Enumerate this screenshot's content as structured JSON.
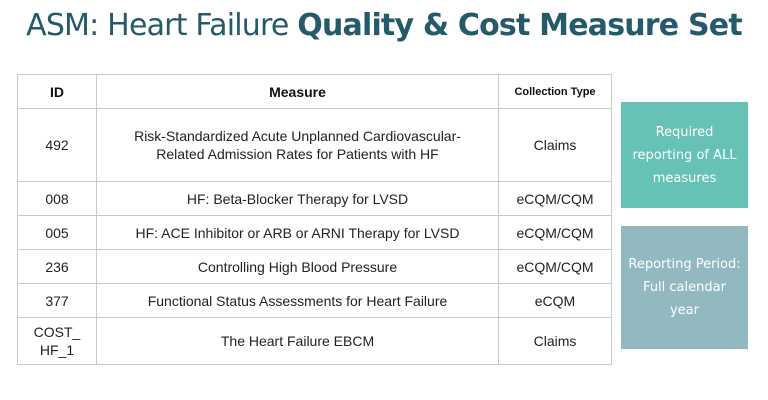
{
  "title": {
    "light": "ASM: Heart Failure ",
    "bold": "Quality & Cost Measure Set"
  },
  "colors": {
    "title": "#255a6a",
    "required_box": "#66c2b5",
    "period_box": "#93b9c0",
    "table_border": "#c9c9c9"
  },
  "table": {
    "headers": {
      "id": "ID",
      "measure": "Measure",
      "collection_type": "Collection Type"
    },
    "rows": [
      {
        "id": "492",
        "measure": "Risk-Standardized Acute Unplanned Cardiovascular-Related Admission Rates for Patients with HF",
        "collection_type": "Claims"
      },
      {
        "id": "008",
        "measure": "HF: Beta-Blocker Therapy for LVSD",
        "collection_type": "eCQM/CQM"
      },
      {
        "id": "005",
        "measure": "HF: ACE Inhibitor or ARB or ARNI Therapy for LVSD",
        "collection_type": "eCQM/CQM"
      },
      {
        "id": "236",
        "measure": "Controlling High Blood Pressure",
        "collection_type": "eCQM/CQM"
      },
      {
        "id": "377",
        "measure": "Functional Status Assessments for Heart Failure",
        "collection_type": "eCQM"
      },
      {
        "id": "COST_ HF_1",
        "measure": "The Heart Failure EBCM",
        "collection_type": "Claims"
      }
    ]
  },
  "side_boxes": {
    "required": "Required reporting of ALL measures",
    "period": "Reporting Period: Full calendar year"
  }
}
